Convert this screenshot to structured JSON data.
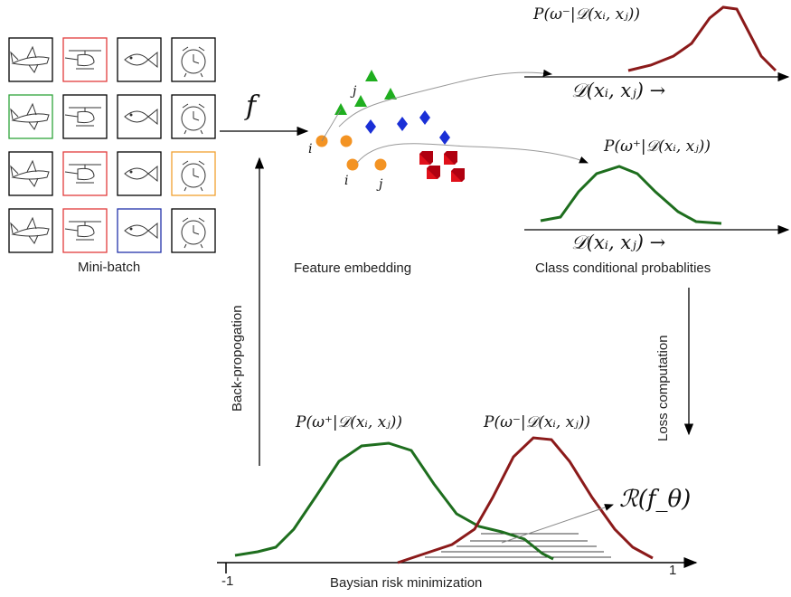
{
  "minibatch": {
    "label": "Mini-batch",
    "tiles": [
      {
        "sketch": "airplane-sketch-icon",
        "border": "#000000"
      },
      {
        "sketch": "helicopter-sketch-icon",
        "border": "#e23b3b"
      },
      {
        "sketch": "fish-sketch-icon",
        "border": "#000000"
      },
      {
        "sketch": "alarm-clock-sketch-icon",
        "border": "#000000"
      },
      {
        "sketch": "airplane-sketch-icon",
        "border": "#2ea33a"
      },
      {
        "sketch": "helicopter-sketch-icon",
        "border": "#000000"
      },
      {
        "sketch": "fish-sketch-icon",
        "border": "#000000"
      },
      {
        "sketch": "alarm-clock-sketch-icon",
        "border": "#000000"
      },
      {
        "sketch": "airplane-sketch-icon",
        "border": "#000000"
      },
      {
        "sketch": "helicopter-sketch-icon",
        "border": "#e23b3b"
      },
      {
        "sketch": "fish-sketch-icon",
        "border": "#000000"
      },
      {
        "sketch": "alarm-clock-sketch-icon",
        "border": "#f0a030"
      },
      {
        "sketch": "airplane-sketch-icon",
        "border": "#000000"
      },
      {
        "sketch": "helicopter-sketch-icon",
        "border": "#e23b3b"
      },
      {
        "sketch": "fish-sketch-icon",
        "border": "#2233aa"
      },
      {
        "sketch": "alarm-clock-sketch-icon",
        "border": "#000000"
      }
    ]
  },
  "function_label": "f",
  "embedding": {
    "label": "Feature embedding",
    "i_label": "i",
    "j_label": "j",
    "colors": {
      "triangle": "#1fae1f",
      "diamond": "#1a2fd6",
      "circle": "#f39323",
      "square": "#e0101a"
    }
  },
  "backprop_label": "Back-propogation",
  "neg_dist": {
    "prob_label": "P(ω⁻|𝒟(xᵢ, xⱼ))",
    "axis_label": "𝒟(xᵢ, xⱼ) →",
    "color": "#8b1a1a"
  },
  "pos_dist": {
    "prob_label": "P(ω⁺|𝒟(xᵢ, xⱼ))",
    "axis_label": "𝒟(xᵢ, xⱼ) →",
    "color": "#1e6e1e"
  },
  "class_cond_label": "Class conditional probablities",
  "loss_label": "Loss computation",
  "bottom": {
    "pos_label": "P(ω⁺|𝒟(xᵢ, xⱼ))",
    "neg_label": "P(ω⁻|𝒟(xᵢ, xⱼ))",
    "risk_label": "ℛ(f_θ)",
    "axis_min": "-1",
    "axis_max": "1",
    "title": "Baysian risk minimization"
  }
}
